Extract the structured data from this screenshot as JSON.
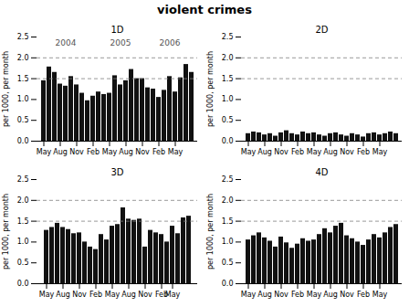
{
  "title": "violent crimes",
  "chart_data": [
    {
      "type": "bar",
      "title": "1D",
      "categories": [
        "May",
        null,
        null,
        "Aug",
        null,
        null,
        "Nov",
        null,
        null,
        "Feb",
        null,
        null,
        "May",
        null,
        null,
        "Aug",
        null,
        null,
        "Nov",
        null,
        null,
        "Feb",
        null,
        null,
        "May",
        null,
        null,
        null
      ],
      "values": [
        1.45,
        1.78,
        1.65,
        1.37,
        1.32,
        1.55,
        1.35,
        1.15,
        0.97,
        1.08,
        1.18,
        1.12,
        1.15,
        1.57,
        1.35,
        1.45,
        1.72,
        1.5,
        1.5,
        1.28,
        1.25,
        1.05,
        1.22,
        1.55,
        1.18,
        1.52,
        1.84,
        1.65
      ],
      "color": "#111111",
      "ylabel": "per 1000, per month",
      "ylim": [
        0.0,
        2.5
      ],
      "yticks": [
        {
          "value": 0.0,
          "label": "0.0"
        },
        0.5,
        {
          "value": 1.0,
          "label": "1.0"
        },
        1.5,
        {
          "value": 2.0,
          "label": "2.0"
        },
        2.5
      ],
      "hlines": [
        1.5,
        2.0
      ],
      "annotations": [
        "2004",
        "2005",
        "2006"
      ],
      "grid": false
    },
    {
      "type": "bar",
      "title": "2D",
      "categories": [
        "May",
        null,
        null,
        "Aug",
        null,
        null,
        "Nov",
        null,
        null,
        "Feb",
        null,
        null,
        "May",
        null,
        null,
        "Aug",
        null,
        null,
        "Nov",
        null,
        null,
        "Feb",
        null,
        null,
        "May",
        null,
        null,
        null
      ],
      "values": [
        0.18,
        0.22,
        0.2,
        0.15,
        0.18,
        0.12,
        0.2,
        0.25,
        0.18,
        0.15,
        0.22,
        0.18,
        0.2,
        0.15,
        0.12,
        0.18,
        0.2,
        0.15,
        0.12,
        0.18,
        0.15,
        0.1,
        0.18,
        0.2,
        0.15,
        0.18,
        0.22,
        0.18
      ],
      "color": "#111111",
      "ylabel": "per 1000, per month",
      "ylim": [
        0.0,
        2.5
      ],
      "yticks": [
        {
          "value": 0.0,
          "label": "0.0"
        },
        0.5,
        {
          "value": 1.0,
          "label": "1.0"
        },
        1.5,
        {
          "value": 2.0,
          "label": "2.0"
        },
        2.5
      ],
      "hlines": [
        1.5,
        2.0
      ],
      "grid": false
    },
    {
      "type": "bar",
      "title": "3D",
      "categories": [
        "May",
        null,
        null,
        "Aug",
        null,
        null,
        "Nov",
        null,
        null,
        "Feb",
        null,
        null,
        "May",
        null,
        null,
        "Aug",
        null,
        null,
        "Nov",
        null,
        null,
        "Feb",
        null,
        "May",
        null,
        null,
        null
      ],
      "values": [
        1.28,
        1.35,
        1.45,
        1.35,
        1.3,
        1.2,
        1.22,
        1.0,
        0.88,
        0.82,
        1.18,
        1.05,
        1.38,
        1.42,
        1.82,
        1.55,
        1.52,
        1.55,
        0.88,
        1.28,
        1.22,
        1.18,
        1.0,
        1.38,
        1.2,
        1.58,
        1.62
      ],
      "color": "#111111",
      "ylabel": "per 1000, per month",
      "ylim": [
        0.0,
        2.5
      ],
      "yticks": [
        {
          "value": 0.0,
          "label": "0.0"
        },
        0.5,
        {
          "value": 1.0,
          "label": "1.0"
        },
        1.5,
        {
          "value": 2.0,
          "label": "2.0"
        },
        2.5
      ],
      "hlines": [
        1.5,
        2.0
      ],
      "grid": false
    },
    {
      "type": "bar",
      "title": "4D",
      "categories": [
        "May",
        null,
        null,
        "Aug",
        null,
        null,
        "Nov",
        null,
        null,
        "Feb",
        null,
        null,
        "May",
        null,
        null,
        "Aug",
        null,
        null,
        "Nov",
        null,
        null,
        "Feb",
        null,
        null,
        "May",
        null,
        null,
        null
      ],
      "values": [
        1.05,
        1.15,
        1.22,
        1.1,
        1.02,
        0.88,
        1.12,
        0.98,
        0.85,
        0.95,
        1.08,
        1.02,
        1.05,
        1.18,
        1.32,
        1.22,
        1.38,
        1.45,
        1.15,
        1.08,
        1.0,
        0.92,
        1.05,
        1.18,
        1.1,
        1.22,
        1.35,
        1.42
      ],
      "color": "#111111",
      "ylabel": "per 1000, per month",
      "ylim": [
        0.0,
        2.5
      ],
      "yticks": [
        {
          "value": 0.0,
          "label": "0.0"
        },
        0.5,
        {
          "value": 1.0,
          "label": "1.0"
        },
        1.5,
        {
          "value": 2.0,
          "label": "2.0"
        },
        2.5
      ],
      "hlines": [
        1.5,
        2.0
      ],
      "grid": false
    }
  ]
}
